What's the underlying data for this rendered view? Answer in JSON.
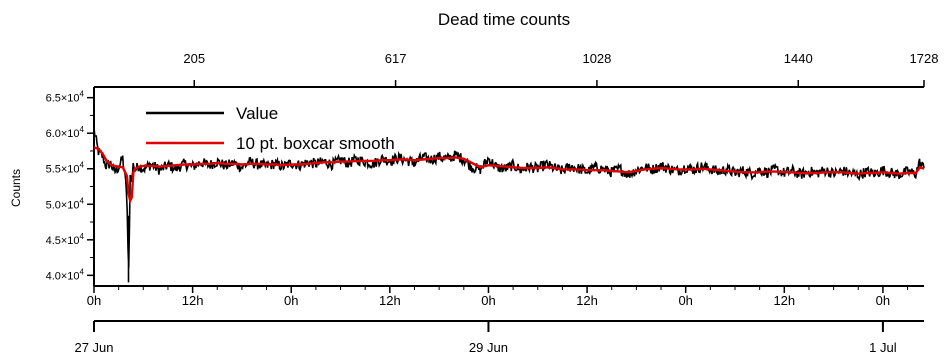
{
  "chart_data": {
    "type": "line",
    "title": "Dead time counts",
    "ylabel": "Counts",
    "ylim": [
      38500,
      66500
    ],
    "y_ticks": [
      {
        "value": 40000,
        "mantissa": "4.0",
        "exp": "4"
      },
      {
        "value": 45000,
        "mantissa": "4.5",
        "exp": "4"
      },
      {
        "value": 50000,
        "mantissa": "5.0",
        "exp": "4"
      },
      {
        "value": 55000,
        "mantissa": "5.5",
        "exp": "4"
      },
      {
        "value": 60000,
        "mantissa": "6.0",
        "exp": "4"
      },
      {
        "value": 65000,
        "mantissa": "6.5",
        "exp": "4"
      }
    ],
    "x_unit": "hours since 27 Jun 00:00",
    "xlim": [
      0,
      101
    ],
    "x_hour_ticks": [
      {
        "x": 0,
        "label": "0h"
      },
      {
        "x": 12,
        "label": "12h"
      },
      {
        "x": 24,
        "label": "0h"
      },
      {
        "x": 36,
        "label": "12h"
      },
      {
        "x": 48,
        "label": "0h"
      },
      {
        "x": 60,
        "label": "12h"
      },
      {
        "x": 72,
        "label": "0h"
      },
      {
        "x": 84,
        "label": "12h"
      },
      {
        "x": 96,
        "label": "0h"
      }
    ],
    "x_date_ticks": [
      {
        "x": 0,
        "label": "27 Jun"
      },
      {
        "x": 48,
        "label": "29 Jun"
      },
      {
        "x": 96,
        "label": "1 Jul"
      }
    ],
    "top_axis_ticks": [
      {
        "x": 12.2,
        "label": "205"
      },
      {
        "x": 36.7,
        "label": "617"
      },
      {
        "x": 61.2,
        "label": "1028"
      },
      {
        "x": 85.7,
        "label": "1440"
      },
      {
        "x": 101,
        "label": "1728"
      }
    ],
    "legend_position": "top-left",
    "series": [
      {
        "name": "Value",
        "color": "#000000",
        "x": [
          0,
          0.5,
          1,
          1.5,
          2,
          2.5,
          3,
          3.5,
          4,
          4.2,
          4.4,
          4.6,
          4.8,
          5,
          5.5,
          6,
          7,
          8,
          9,
          10,
          11,
          12,
          13,
          14,
          15,
          16,
          17,
          18,
          19,
          20,
          21,
          22,
          23,
          24,
          25,
          26,
          27,
          28,
          29,
          30,
          31,
          32,
          33,
          34,
          35,
          36,
          37,
          38,
          39,
          40,
          41,
          42,
          43,
          44,
          45,
          46,
          47,
          48,
          49,
          50,
          51,
          52,
          53,
          54,
          55,
          56,
          57,
          58,
          59,
          60,
          61,
          62,
          63,
          64,
          65,
          66,
          67,
          68,
          69,
          70,
          71,
          72,
          73,
          74,
          75,
          76,
          77,
          78,
          79,
          80,
          81,
          82,
          83,
          84,
          85,
          86,
          87,
          88,
          89,
          90,
          91,
          92,
          93,
          94,
          95,
          96,
          97,
          98,
          99,
          100,
          100.5,
          101
        ],
        "y": [
          60500,
          57500,
          56800,
          55300,
          55800,
          54500,
          55200,
          56500,
          51500,
          39000,
          54000,
          53500,
          55800,
          54800,
          55500,
          55000,
          55600,
          54800,
          55500,
          55000,
          55700,
          55300,
          55900,
          55500,
          56000,
          55400,
          55800,
          55200,
          55900,
          55600,
          55400,
          55700,
          55300,
          55800,
          55500,
          55900,
          55700,
          56000,
          55600,
          56200,
          55800,
          56300,
          56000,
          55700,
          56400,
          56100,
          56500,
          56200,
          55800,
          56600,
          56300,
          56700,
          56400,
          56900,
          56300,
          55200,
          54900,
          56400,
          55200,
          55000,
          55500,
          54800,
          55300,
          55000,
          55600,
          55100,
          54700,
          55300,
          55000,
          54600,
          55200,
          54900,
          54500,
          55000,
          54200,
          54800,
          55200,
          54900,
          55400,
          55000,
          54700,
          55200,
          54900,
          55300,
          55000,
          54600,
          54900,
          54400,
          54700,
          54300,
          54800,
          54500,
          54900,
          54400,
          54700,
          54200,
          54600,
          54400,
          54800,
          54300,
          54700,
          54400,
          54100,
          54600,
          54300,
          54800,
          54400,
          54200,
          54600,
          54300,
          56000,
          55000
        ]
      },
      {
        "name": "10 pt. boxcar smooth",
        "color": "#e00000",
        "x": [
          0,
          0.5,
          1,
          1.5,
          2,
          2.5,
          3,
          3.5,
          4,
          4.2,
          4.4,
          4.6,
          4.8,
          5,
          5.5,
          6,
          7,
          8,
          9,
          10,
          11,
          12,
          13,
          14,
          15,
          16,
          17,
          18,
          19,
          20,
          21,
          22,
          23,
          24,
          25,
          26,
          27,
          28,
          29,
          30,
          31,
          32,
          33,
          34,
          35,
          36,
          37,
          38,
          39,
          40,
          41,
          42,
          43,
          44,
          45,
          46,
          47,
          48,
          49,
          50,
          51,
          52,
          53,
          54,
          55,
          56,
          57,
          58,
          59,
          60,
          61,
          62,
          63,
          64,
          65,
          66,
          67,
          68,
          69,
          70,
          71,
          72,
          73,
          74,
          75,
          76,
          77,
          78,
          79,
          80,
          81,
          82,
          83,
          84,
          85,
          86,
          87,
          88,
          89,
          90,
          91,
          92,
          93,
          94,
          95,
          96,
          97,
          98,
          99,
          100,
          100.5,
          101
        ],
        "y": [
          58000,
          57800,
          57200,
          56200,
          55600,
          55400,
          55300,
          55200,
          54000,
          51500,
          50500,
          51000,
          54500,
          55000,
          55300,
          55400,
          55400,
          55300,
          55400,
          55500,
          55600,
          55600,
          55700,
          55700,
          55800,
          55700,
          55700,
          55600,
          55700,
          55700,
          55600,
          55600,
          55500,
          55600,
          55600,
          55700,
          55800,
          55900,
          55900,
          56000,
          56000,
          56100,
          56100,
          56100,
          56200,
          56200,
          56300,
          56300,
          56200,
          56300,
          56400,
          56500,
          56500,
          56600,
          56400,
          55800,
          55200,
          55500,
          55400,
          55300,
          55200,
          55100,
          55100,
          55100,
          55200,
          55100,
          54900,
          54900,
          54900,
          54800,
          54800,
          54800,
          54700,
          54600,
          54500,
          54700,
          54900,
          55000,
          55100,
          55000,
          54900,
          54900,
          54900,
          55000,
          54900,
          54800,
          54700,
          54600,
          54500,
          54500,
          54500,
          54600,
          54600,
          54500,
          54500,
          54400,
          54400,
          54400,
          54500,
          54500,
          54500,
          54400,
          54300,
          54400,
          54400,
          54500,
          54400,
          54300,
          54400,
          54400,
          55200,
          55000
        ]
      }
    ]
  }
}
